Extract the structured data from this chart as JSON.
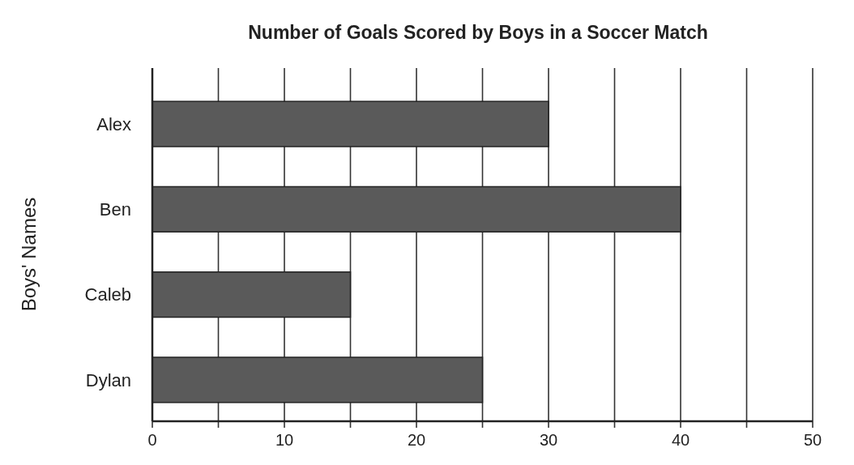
{
  "chart_data": {
    "type": "bar",
    "orientation": "horizontal",
    "title": "Number of Goals Scored by Boys in a Soccer Match",
    "ylabel": "Boys' Names",
    "categories": [
      "Alex",
      "Ben",
      "Caleb",
      "Dylan"
    ],
    "values": [
      30,
      40,
      15,
      25
    ],
    "color": "#5a5a5a",
    "xlim": [
      0,
      50
    ],
    "xticks": [
      0,
      {
        "value": 5,
        "label": null
      },
      10,
      {
        "value": 15,
        "label": null
      },
      20,
      {
        "value": 25,
        "label": null
      },
      30,
      {
        "value": 35,
        "label": null
      },
      40,
      {
        "value": 45,
        "label": null
      },
      50
    ],
    "grid": "x"
  }
}
